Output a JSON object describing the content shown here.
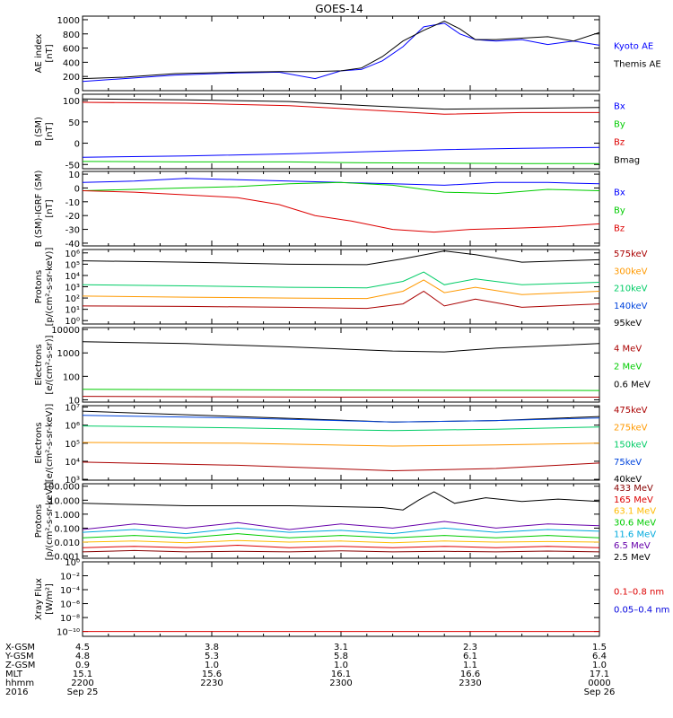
{
  "title": "GOES-14",
  "chart_data": [
    {
      "type": "line",
      "ylabel": [
        "AE index",
        "[nT]"
      ],
      "yticks": [
        "1000",
        "800",
        "600",
        "400",
        "200",
        "0"
      ],
      "yvals": [
        1000,
        800,
        600,
        400,
        200,
        0
      ],
      "ylim": [
        0,
        1050
      ],
      "log": false,
      "legend": [
        {
          "name": "Kyoto AE",
          "color": "#0000ff"
        },
        {
          "name": "Themis AE",
          "color": "#000000"
        }
      ],
      "series": [
        {
          "name": "Kyoto AE",
          "color": "#0000ff",
          "t": [
            0,
            0.08,
            0.18,
            0.3,
            0.38,
            0.45,
            0.5,
            0.54,
            0.58,
            0.62,
            0.66,
            0.7,
            0.73,
            0.76,
            0.8,
            0.85,
            0.9,
            0.95,
            1
          ],
          "values": [
            130,
            170,
            220,
            250,
            260,
            170,
            280,
            300,
            420,
            620,
            900,
            950,
            800,
            720,
            700,
            720,
            650,
            700,
            640
          ]
        },
        {
          "name": "Themis AE",
          "color": "#000000",
          "t": [
            0,
            0.08,
            0.18,
            0.3,
            0.38,
            0.45,
            0.5,
            0.54,
            0.58,
            0.62,
            0.66,
            0.7,
            0.73,
            0.76,
            0.8,
            0.85,
            0.9,
            0.95,
            1
          ],
          "values": [
            170,
            190,
            240,
            260,
            270,
            270,
            280,
            320,
            480,
            700,
            850,
            980,
            870,
            720,
            720,
            740,
            760,
            700,
            820
          ]
        }
      ]
    },
    {
      "type": "line",
      "ylabel": [
        "B (SM)",
        "[nT]"
      ],
      "yticks": [
        "100",
        "50",
        "0",
        "-50"
      ],
      "yvals": [
        100,
        50,
        0,
        -50
      ],
      "ylim": [
        -60,
        115
      ],
      "log": false,
      "legend": [
        {
          "name": "Bx",
          "color": "#0000ff"
        },
        {
          "name": "By",
          "color": "#00cc00"
        },
        {
          "name": "Bz",
          "color": "#dd0000"
        },
        {
          "name": "Bmag",
          "color": "#000000"
        }
      ],
      "series": [
        {
          "name": "Bmag",
          "color": "#000000",
          "t": [
            0,
            0.2,
            0.4,
            0.55,
            0.7,
            0.85,
            1
          ],
          "values": [
            104,
            102,
            98,
            88,
            80,
            82,
            84
          ]
        },
        {
          "name": "Bz",
          "color": "#dd0000",
          "t": [
            0,
            0.2,
            0.4,
            0.55,
            0.7,
            0.85,
            1
          ],
          "values": [
            96,
            94,
            88,
            78,
            68,
            72,
            72
          ]
        },
        {
          "name": "Bx",
          "color": "#0000ff",
          "t": [
            0,
            0.2,
            0.4,
            0.55,
            0.7,
            0.85,
            1
          ],
          "values": [
            -33,
            -30,
            -25,
            -20,
            -15,
            -12,
            -10
          ]
        },
        {
          "name": "By",
          "color": "#00cc00",
          "t": [
            0,
            0.2,
            0.4,
            0.55,
            0.7,
            0.85,
            1
          ],
          "values": [
            -43,
            -44,
            -44,
            -46,
            -47,
            -48,
            -48
          ]
        }
      ]
    },
    {
      "type": "line",
      "ylabel": [
        "B (SM)-IGRF (SM)",
        "[nT]"
      ],
      "yticks": [
        "10",
        "0",
        "-10",
        "-20",
        "-30",
        "-40"
      ],
      "yvals": [
        10,
        0,
        -10,
        -20,
        -30,
        -40
      ],
      "ylim": [
        -42,
        12
      ],
      "log": false,
      "legend": [
        {
          "name": "Bx",
          "color": "#0000ff"
        },
        {
          "name": "By",
          "color": "#00cc00"
        },
        {
          "name": "Bz",
          "color": "#dd0000"
        }
      ],
      "series": [
        {
          "name": "Bx",
          "color": "#0000ff",
          "t": [
            0,
            0.1,
            0.2,
            0.3,
            0.4,
            0.5,
            0.6,
            0.7,
            0.8,
            0.9,
            1
          ],
          "values": [
            4,
            5,
            7,
            6,
            5,
            4,
            3,
            2,
            4,
            4,
            3
          ]
        },
        {
          "name": "By",
          "color": "#00cc00",
          "t": [
            0,
            0.1,
            0.2,
            0.3,
            0.4,
            0.5,
            0.6,
            0.7,
            0.8,
            0.9,
            1
          ],
          "values": [
            -2,
            -1,
            0,
            1,
            3,
            4,
            2,
            -3,
            -4,
            -1,
            -2
          ]
        },
        {
          "name": "Bz",
          "color": "#dd0000",
          "t": [
            0,
            0.1,
            0.2,
            0.3,
            0.38,
            0.45,
            0.52,
            0.6,
            0.68,
            0.75,
            0.85,
            0.92,
            1
          ],
          "values": [
            -2,
            -3,
            -5,
            -7,
            -12,
            -20,
            -24,
            -30,
            -32,
            -30,
            -29,
            -28,
            -26
          ]
        }
      ]
    },
    {
      "type": "line",
      "ylabel": [
        "Protons",
        "[p/(cm²-s-sr-keV)]"
      ],
      "yticks": [
        "10⁶",
        "10⁵",
        "10⁴",
        "10³",
        "10²",
        "10¹",
        "10⁰"
      ],
      "yvals": [
        1000000,
        100000,
        10000,
        1000,
        100,
        10,
        1
      ],
      "ylim": [
        0.5,
        2000000
      ],
      "log": true,
      "legend": [
        {
          "name": "575keV",
          "color": "#aa0000"
        },
        {
          "name": "300keV",
          "color": "#ff9900"
        },
        {
          "name": "210keV",
          "color": "#00cc66"
        },
        {
          "name": "140keV",
          "color": "#0044dd"
        },
        {
          "name": "95keV",
          "color": "#000000"
        }
      ],
      "series": [
        {
          "name": "95keV",
          "color": "#000000",
          "t": [
            0,
            0.2,
            0.4,
            0.55,
            0.62,
            0.7,
            0.76,
            0.85,
            1
          ],
          "values": [
            200000,
            150000,
            100000,
            90000,
            300000,
            1500000,
            700000,
            150000,
            250000
          ]
        },
        {
          "name": "210keV",
          "color": "#00cc66",
          "t": [
            0,
            0.2,
            0.4,
            0.55,
            0.62,
            0.66,
            0.7,
            0.76,
            0.85,
            1
          ],
          "values": [
            1500,
            1200,
            900,
            800,
            3000,
            20000,
            1500,
            5000,
            1500,
            2500
          ]
        },
        {
          "name": "300keV",
          "color": "#ff9900",
          "t": [
            0,
            0.2,
            0.4,
            0.55,
            0.62,
            0.66,
            0.7,
            0.76,
            0.85,
            1
          ],
          "values": [
            150,
            120,
            100,
            90,
            400,
            4000,
            300,
            900,
            200,
            400
          ]
        },
        {
          "name": "575keV",
          "color": "#aa0000",
          "t": [
            0,
            0.2,
            0.4,
            0.55,
            0.62,
            0.66,
            0.7,
            0.76,
            0.85,
            1
          ],
          "values": [
            20,
            18,
            15,
            12,
            30,
            400,
            20,
            80,
            15,
            30
          ]
        }
      ]
    },
    {
      "type": "line",
      "ylabel": [
        "Electrons",
        "[e/(cm²-s-sr)]"
      ],
      "yticks": [
        "10000",
        "1000",
        "100",
        "10"
      ],
      "yvals": [
        10000,
        1000,
        100,
        10
      ],
      "ylim": [
        8,
        12000
      ],
      "log": true,
      "legend": [
        {
          "name": "4 MeV",
          "color": "#aa0000"
        },
        {
          "name": "2 MeV",
          "color": "#00cc00"
        },
        {
          "name": "0.6 MeV",
          "color": "#000000"
        }
      ],
      "series": [
        {
          "name": "0.6 MeV",
          "color": "#000000",
          "t": [
            0,
            0.2,
            0.4,
            0.6,
            0.7,
            0.8,
            1
          ],
          "values": [
            3000,
            2500,
            1800,
            1200,
            1100,
            1600,
            2500
          ]
        },
        {
          "name": "2 MeV",
          "color": "#00cc00",
          "t": [
            0,
            0.5,
            1
          ],
          "values": [
            28,
            26,
            25
          ]
        },
        {
          "name": "4 MeV",
          "color": "#aa0000",
          "t": [
            0,
            0.5,
            1
          ],
          "values": [
            14,
            13,
            13
          ]
        }
      ]
    },
    {
      "type": "line",
      "ylabel": [
        "Electrons",
        "[e/(cm²-s-sr-keV)]"
      ],
      "yticks": [
        "10⁷",
        "10⁶",
        "10⁵",
        "10⁴",
        "10³"
      ],
      "yvals": [
        10000000,
        1000000,
        100000,
        10000,
        1000
      ],
      "ylim": [
        900,
        12000000
      ],
      "log": true,
      "legend": [
        {
          "name": "475keV",
          "color": "#aa0000"
        },
        {
          "name": "275keV",
          "color": "#ff9900"
        },
        {
          "name": "150keV",
          "color": "#00cc66"
        },
        {
          "name": "75keV",
          "color": "#0044dd"
        },
        {
          "name": "40keV",
          "color": "#000000"
        }
      ],
      "series": [
        {
          "name": "40keV",
          "color": "#000000",
          "t": [
            0,
            0.3,
            0.6,
            0.8,
            1
          ],
          "values": [
            6000000,
            3000000,
            1500000,
            1800000,
            3000000
          ]
        },
        {
          "name": "75keV",
          "color": "#0044dd",
          "t": [
            0,
            0.3,
            0.6,
            0.8,
            1
          ],
          "values": [
            3500000,
            2500000,
            1500000,
            1800000,
            2500000
          ]
        },
        {
          "name": "150keV",
          "color": "#00cc66",
          "t": [
            0,
            0.3,
            0.6,
            0.8,
            1
          ],
          "values": [
            900000,
            700000,
            500000,
            600000,
            800000
          ]
        },
        {
          "name": "275keV",
          "color": "#ff9900",
          "t": [
            0,
            0.3,
            0.6,
            0.8,
            1
          ],
          "values": [
            110000,
            100000,
            70000,
            80000,
            100000
          ]
        },
        {
          "name": "475keV",
          "color": "#aa0000",
          "t": [
            0,
            0.3,
            0.6,
            0.8,
            1
          ],
          "values": [
            9000,
            6000,
            3000,
            4000,
            8000
          ]
        }
      ]
    },
    {
      "type": "line",
      "ylabel": [
        "Protons",
        "[p/(cm²-s-sr-keV)]"
      ],
      "yticks": [
        "100.000",
        "10.000",
        "1.000",
        "0.100",
        "0.010",
        "0.001"
      ],
      "yvals": [
        100,
        10,
        1,
        0.1,
        0.01,
        0.001
      ],
      "ylim": [
        0.0007,
        150
      ],
      "log": true,
      "legend": [
        {
          "name": "433 MeV",
          "color": "#880000"
        },
        {
          "name": "165 MeV",
          "color": "#dd0000"
        },
        {
          "name": "63.1 MeV",
          "color": "#ffbb00"
        },
        {
          "name": "30.6 MeV",
          "color": "#00cc00"
        },
        {
          "name": "11.6 MeV",
          "color": "#00aadd"
        },
        {
          "name": "6.5 MeV",
          "color": "#6600aa"
        },
        {
          "name": "2.5 MeV",
          "color": "#000000"
        }
      ],
      "series": [
        {
          "name": "2.5 MeV",
          "color": "#000000",
          "t": [
            0,
            0.2,
            0.4,
            0.58,
            0.62,
            0.65,
            0.68,
            0.72,
            0.78,
            0.85,
            0.92,
            1
          ],
          "values": [
            6,
            4,
            4,
            3,
            2,
            10,
            40,
            6,
            15,
            8,
            12,
            8
          ]
        },
        {
          "name": "6.5 MeV",
          "color": "#6600aa",
          "t": [
            0,
            0.1,
            0.2,
            0.3,
            0.4,
            0.5,
            0.6,
            0.7,
            0.8,
            0.9,
            1
          ],
          "values": [
            0.08,
            0.2,
            0.1,
            0.25,
            0.08,
            0.2,
            0.1,
            0.3,
            0.1,
            0.2,
            0.15
          ]
        },
        {
          "name": "11.6 MeV",
          "color": "#00aadd",
          "t": [
            0,
            0.1,
            0.2,
            0.3,
            0.4,
            0.5,
            0.6,
            0.7,
            0.8,
            0.9,
            1
          ],
          "values": [
            0.05,
            0.08,
            0.04,
            0.1,
            0.05,
            0.07,
            0.04,
            0.1,
            0.05,
            0.08,
            0.06
          ]
        },
        {
          "name": "30.6 MeV",
          "color": "#00cc00",
          "t": [
            0,
            0.1,
            0.2,
            0.3,
            0.4,
            0.5,
            0.6,
            0.7,
            0.8,
            0.9,
            1
          ],
          "values": [
            0.02,
            0.03,
            0.02,
            0.04,
            0.02,
            0.03,
            0.02,
            0.03,
            0.02,
            0.03,
            0.02
          ]
        },
        {
          "name": "63.1 MeV",
          "color": "#ffbb00",
          "t": [
            0,
            0.1,
            0.2,
            0.3,
            0.4,
            0.5,
            0.6,
            0.7,
            0.8,
            0.9,
            1
          ],
          "values": [
            0.01,
            0.012,
            0.009,
            0.013,
            0.01,
            0.012,
            0.009,
            0.012,
            0.01,
            0.011,
            0.01
          ]
        },
        {
          "name": "165 MeV",
          "color": "#dd0000",
          "t": [
            0,
            0.1,
            0.2,
            0.3,
            0.4,
            0.5,
            0.6,
            0.7,
            0.8,
            0.9,
            1
          ],
          "values": [
            0.004,
            0.005,
            0.004,
            0.006,
            0.004,
            0.005,
            0.004,
            0.005,
            0.004,
            0.005,
            0.004
          ]
        },
        {
          "name": "433 MeV",
          "color": "#880000",
          "t": [
            0,
            0.1,
            0.2,
            0.3,
            0.4,
            0.5,
            0.6,
            0.7,
            0.8,
            0.9,
            1
          ],
          "values": [
            0.002,
            0.0025,
            0.002,
            0.0022,
            0.002,
            0.0024,
            0.002,
            0.0022,
            0.002,
            0.0023,
            0.002
          ]
        }
      ]
    },
    {
      "type": "line",
      "ylabel": [
        "Xray Flux",
        "[W/m²]"
      ],
      "yticks": [
        "10⁰",
        "10⁻²",
        "10⁻⁴",
        "10⁻⁶",
        "10⁻⁸",
        "10⁻¹⁰"
      ],
      "yvals": [
        1,
        0.01,
        0.0001,
        1e-06,
        1e-08,
        1e-10
      ],
      "ylim": [
        2e-11,
        1
      ],
      "log": true,
      "legend": [
        {
          "name": "0.1–0.8 nm",
          "color": "#dd0000"
        },
        {
          "name": "0.05–0.4 nm",
          "color": "#0000dd"
        }
      ],
      "series": [
        {
          "name": "0.1–0.8 nm",
          "color": "#dd0000",
          "t": [
            0,
            1
          ],
          "values": [
            1e-10,
            1e-10
          ]
        }
      ]
    }
  ],
  "time_axis": {
    "row_labels": [
      "X-GSM",
      "Y-GSM",
      "Z-GSM",
      "MLT",
      "hhmm",
      "2016"
    ],
    "ticks": [
      {
        "t": 0.0,
        "values": [
          "4.5",
          "4.8",
          "0.9",
          "15.1",
          "2200",
          "Sep 25"
        ]
      },
      {
        "t": 0.25,
        "values": [
          "3.8",
          "5.3",
          "1.0",
          "15.6",
          "2230",
          ""
        ]
      },
      {
        "t": 0.5,
        "values": [
          "3.1",
          "5.8",
          "1.0",
          "16.1",
          "2300",
          ""
        ]
      },
      {
        "t": 0.75,
        "values": [
          "2.3",
          "6.1",
          "1.1",
          "16.6",
          "2330",
          ""
        ]
      },
      {
        "t": 1.0,
        "values": [
          "1.5",
          "6.4",
          "1.0",
          "17.1",
          "0000",
          "Sep 26"
        ]
      }
    ]
  }
}
